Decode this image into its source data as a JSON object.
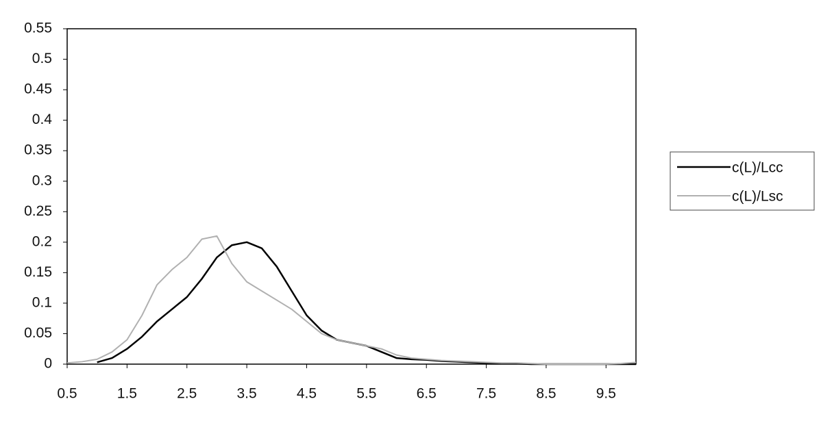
{
  "chart_data": {
    "type": "line",
    "x": [
      0.5,
      0.75,
      1,
      1.25,
      1.5,
      1.75,
      2,
      2.25,
      2.5,
      2.75,
      3,
      3.25,
      3.5,
      3.75,
      4,
      4.25,
      4.5,
      4.75,
      5,
      5.25,
      5.5,
      5.75,
      6,
      6.25,
      6.5,
      6.75,
      7,
      7.25,
      7.5,
      7.75,
      8,
      8.25,
      8.5,
      8.75,
      9,
      9.25,
      9.5,
      9.75,
      10
    ],
    "series": [
      {
        "name": "c(L)/Lcc",
        "color": "#000000",
        "values": [
          null,
          null,
          0.003,
          0.01,
          0.025,
          0.045,
          0.07,
          0.09,
          0.11,
          0.14,
          0.175,
          0.195,
          0.2,
          0.19,
          0.16,
          0.12,
          0.08,
          0.055,
          0.04,
          0.035,
          0.03,
          0.02,
          0.01,
          0.008,
          0.007,
          0.005,
          0.004,
          0.003,
          0.002,
          0.001,
          0.001,
          0,
          0,
          0,
          0,
          0,
          0,
          0,
          0
        ]
      },
      {
        "name": "c(L)/Lsc",
        "color": "#b0b0b0",
        "values": [
          0.002,
          0.004,
          0.008,
          0.02,
          0.04,
          0.08,
          0.13,
          0.155,
          0.175,
          0.205,
          0.21,
          0.165,
          0.135,
          0.12,
          0.105,
          0.09,
          0.07,
          0.05,
          0.04,
          0.035,
          0.03,
          0.025,
          0.015,
          0.01,
          0.008,
          0.006,
          0.005,
          0.004,
          0.003,
          0.002,
          0.002,
          0.001,
          0,
          0,
          0,
          0,
          0,
          0.001,
          0.003
        ]
      }
    ],
    "xlim": [
      0.5,
      10
    ],
    "xticks": [
      0.5,
      1.5,
      2.5,
      3.5,
      4.5,
      5.5,
      6.5,
      7.5,
      8.5,
      9.5
    ],
    "ylim": [
      0,
      0.55
    ],
    "yticks": [
      0,
      0.05,
      0.1,
      0.15,
      0.2,
      0.25,
      0.3,
      0.35,
      0.4,
      0.45,
      0.5,
      0.55
    ],
    "grid": false,
    "legend": "right"
  }
}
